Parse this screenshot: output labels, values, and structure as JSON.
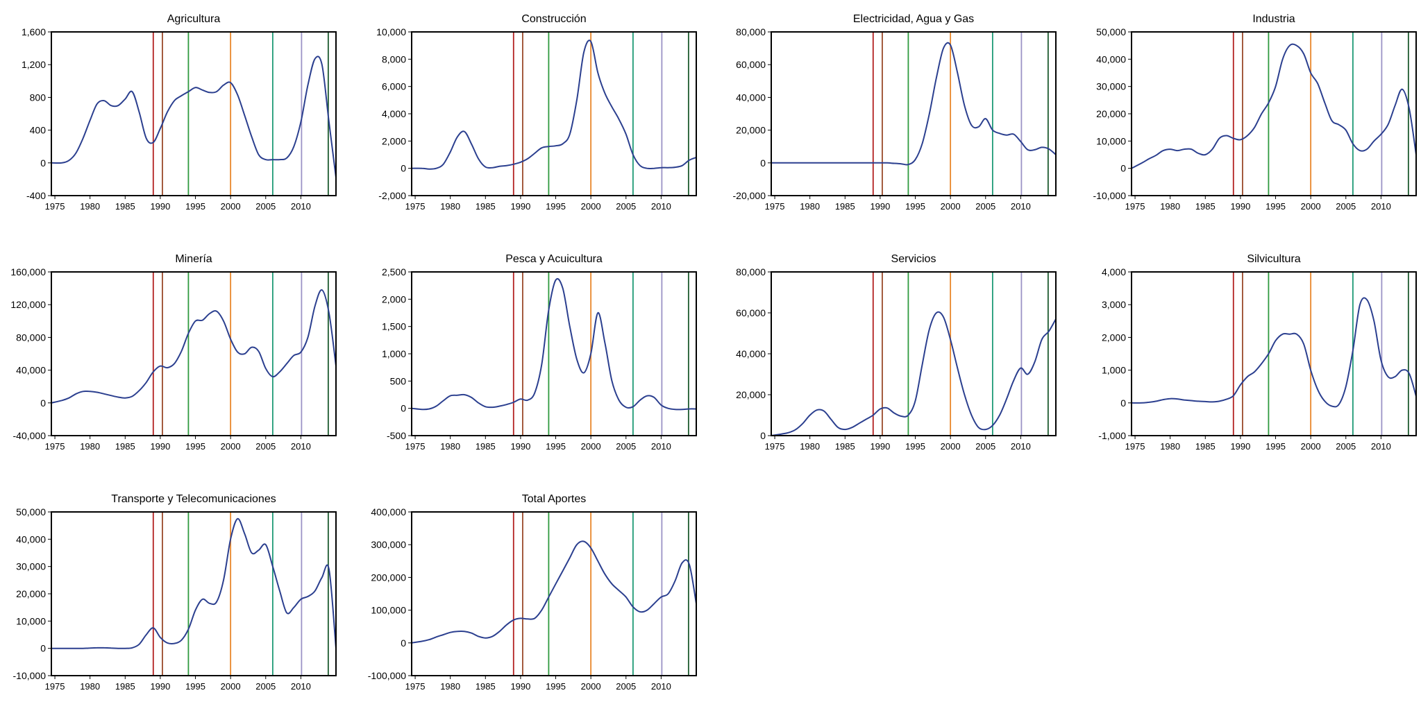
{
  "style": {
    "line_color": "#2b3f8f",
    "frame_color": "#000000",
    "event_lines": [
      {
        "year": 1989,
        "color": "#b32020"
      },
      {
        "year": 1990.3,
        "color": "#9a4a2a"
      },
      {
        "year": 1994,
        "color": "#2e9a3e"
      },
      {
        "year": 2000,
        "color": "#e8862a"
      },
      {
        "year": 2006,
        "color": "#1f9a76"
      },
      {
        "year": 2010.1,
        "color": "#9b93c6"
      },
      {
        "year": 2013.9,
        "color": "#1d5a2e"
      }
    ]
  },
  "x_axis": {
    "xlim": [
      1974.5,
      2015
    ],
    "tick_years": [
      1975,
      1980,
      1985,
      1990,
      1995,
      2000,
      2005,
      2010
    ],
    "tick_labels": [
      "1975",
      "1980",
      "1985",
      "1990",
      "1995",
      "2000",
      "2005",
      "2010"
    ]
  },
  "chart_data": [
    {
      "type": "line",
      "title": "Agricultura",
      "ylim": [
        -400,
        1600
      ],
      "y_ticks": [
        -400,
        0,
        400,
        800,
        1200,
        1600
      ],
      "y_tick_labels": [
        "-400",
        "0",
        "400",
        "800",
        "1,200",
        "1,600"
      ],
      "x": [
        1974.5,
        1976,
        1977,
        1978,
        1979,
        1980,
        1981,
        1982,
        1983,
        1984,
        1985,
        1986,
        1987,
        1988,
        1989,
        1990,
        1991,
        1992,
        1993,
        1994,
        1995,
        1996,
        1997,
        1998,
        1999,
        2000,
        2001,
        2002,
        2003,
        2004,
        2005,
        2006,
        2007,
        2008,
        2009,
        2010,
        2011,
        2012,
        2013,
        2014,
        2015
      ],
      "values": [
        0,
        0,
        30,
        120,
        300,
        520,
        720,
        760,
        700,
        700,
        780,
        870,
        620,
        300,
        250,
        420,
        620,
        760,
        820,
        870,
        920,
        890,
        860,
        870,
        950,
        980,
        830,
        580,
        320,
        100,
        40,
        40,
        40,
        60,
        200,
        500,
        950,
        1270,
        1200,
        500,
        -180
      ],
      "vlines": [
        1989,
        1990.3,
        1994,
        2000,
        2006,
        2010.1,
        2013.9
      ]
    },
    {
      "type": "line",
      "title": "Construcción",
      "ylim": [
        -2000,
        10000
      ],
      "y_ticks": [
        -2000,
        0,
        2000,
        4000,
        6000,
        8000,
        10000
      ],
      "y_tick_labels": [
        "-2,000",
        "0",
        "2,000",
        "4,000",
        "6,000",
        "8,000",
        "10,000"
      ],
      "x": [
        1974.5,
        1976,
        1977,
        1978,
        1979,
        1980,
        1981,
        1982,
        1983,
        1984,
        1985,
        1986,
        1987,
        1988,
        1989,
        1990,
        1991,
        1992,
        1993,
        1994,
        1995,
        1996,
        1997,
        1998,
        1999,
        2000,
        2001,
        2002,
        2003,
        2004,
        2005,
        2006,
        2007,
        2008,
        2009,
        2010,
        2011,
        2012,
        2013,
        2014,
        2015
      ],
      "values": [
        0,
        0,
        -50,
        0,
        300,
        1200,
        2300,
        2700,
        1800,
        700,
        100,
        50,
        150,
        200,
        300,
        450,
        700,
        1100,
        1500,
        1600,
        1650,
        1800,
        2500,
        5000,
        8500,
        9300,
        7000,
        5500,
        4500,
        3600,
        2500,
        1000,
        200,
        0,
        0,
        50,
        50,
        80,
        200,
        600,
        800
      ],
      "vlines": [
        1989,
        1990.3,
        1994,
        2000,
        2006,
        2010.1,
        2013.9
      ]
    },
    {
      "type": "line",
      "title": "Electricidad, Agua y Gas",
      "ylim": [
        -20000,
        80000
      ],
      "y_ticks": [
        -20000,
        0,
        20000,
        40000,
        60000,
        80000
      ],
      "y_tick_labels": [
        "-20,000",
        "0",
        "20,000",
        "40,000",
        "60,000",
        "80,000"
      ],
      "x": [
        1974.5,
        1980,
        1985,
        1989,
        1990,
        1991,
        1992,
        1993,
        1994,
        1995,
        1996,
        1997,
        1998,
        1999,
        2000,
        2001,
        2002,
        2003,
        2004,
        2005,
        2006,
        2007,
        2008,
        2009,
        2010,
        2011,
        2012,
        2013,
        2014,
        2015
      ],
      "values": [
        0,
        0,
        0,
        0,
        0,
        0,
        -300,
        -600,
        -1000,
        2000,
        12000,
        30000,
        52000,
        70000,
        72000,
        55000,
        35000,
        23000,
        22000,
        27000,
        20000,
        18000,
        17000,
        17500,
        13000,
        8000,
        8000,
        9500,
        8500,
        5000
      ],
      "vlines": [
        1989,
        1990.3,
        1994,
        2000,
        2006,
        2010.1,
        2013.9
      ]
    },
    {
      "type": "line",
      "title": "Industria",
      "ylim": [
        -10000,
        50000
      ],
      "y_ticks": [
        -10000,
        0,
        10000,
        20000,
        30000,
        40000,
        50000
      ],
      "y_tick_labels": [
        "-10,000",
        "0",
        "10,000",
        "20,000",
        "30,000",
        "40,000",
        "50,000"
      ],
      "x": [
        1974.5,
        1976,
        1977,
        1978,
        1979,
        1980,
        1981,
        1982,
        1983,
        1984,
        1985,
        1986,
        1987,
        1988,
        1989,
        1990,
        1991,
        1992,
        1993,
        1994,
        1995,
        1996,
        1997,
        1998,
        1999,
        2000,
        2001,
        2002,
        2003,
        2004,
        2005,
        2006,
        2007,
        2008,
        2009,
        2010,
        2011,
        2012,
        2013,
        2014,
        2015
      ],
      "values": [
        0,
        2000,
        3500,
        4800,
        6500,
        7000,
        6500,
        7000,
        7000,
        5500,
        5000,
        7000,
        11000,
        12000,
        11000,
        10500,
        12000,
        15000,
        20000,
        24000,
        30000,
        40000,
        45000,
        45000,
        42000,
        35000,
        31000,
        24000,
        17500,
        16000,
        14000,
        9000,
        6500,
        7000,
        10000,
        12500,
        16000,
        23000,
        29000,
        22000,
        5000
      ],
      "vlines": [
        1989,
        1990.3,
        1994,
        2000,
        2006,
        2010.1,
        2013.9
      ]
    },
    {
      "type": "line",
      "title": "Minería",
      "ylim": [
        -40000,
        160000
      ],
      "y_ticks": [
        -40000,
        0,
        40000,
        80000,
        120000,
        160000
      ],
      "y_tick_labels": [
        "-40,000",
        "0",
        "40,000",
        "80,000",
        "120,000",
        "160,000"
      ],
      "x": [
        1974.5,
        1976,
        1977,
        1978,
        1979,
        1980,
        1981,
        1982,
        1983,
        1984,
        1985,
        1986,
        1987,
        1988,
        1989,
        1990,
        1991,
        1992,
        1993,
        1994,
        1995,
        1996,
        1997,
        1998,
        1999,
        2000,
        2001,
        2002,
        2003,
        2004,
        2005,
        2006,
        2007,
        2008,
        2009,
        2010,
        2011,
        2012,
        2013,
        2014,
        2015
      ],
      "values": [
        0,
        3000,
        6000,
        11000,
        14000,
        14000,
        13000,
        11000,
        9000,
        7000,
        6000,
        8000,
        15000,
        25000,
        38000,
        45000,
        43000,
        48000,
        63000,
        85000,
        100000,
        101000,
        109000,
        112000,
        100000,
        78000,
        62000,
        60000,
        68000,
        63000,
        42000,
        32000,
        38000,
        48000,
        58000,
        62000,
        80000,
        118000,
        138000,
        110000,
        45000
      ],
      "vlines": [
        1989,
        1990.3,
        1994,
        2000,
        2006,
        2010.1,
        2013.9
      ]
    },
    {
      "type": "line",
      "title": "Pesca y Acuicultura",
      "ylim": [
        -500,
        2500
      ],
      "y_ticks": [
        -500,
        0,
        500,
        1000,
        1500,
        2000,
        2500
      ],
      "y_tick_labels": [
        "-500",
        "0",
        "500",
        "1,000",
        "1,500",
        "2,000",
        "2,500"
      ],
      "x": [
        1974.5,
        1976,
        1977,
        1978,
        1979,
        1980,
        1981,
        1982,
        1983,
        1984,
        1985,
        1986,
        1987,
        1988,
        1989,
        1990,
        1991,
        1992,
        1993,
        1994,
        1995,
        1996,
        1997,
        1998,
        1999,
        2000,
        2001,
        2002,
        2003,
        2004,
        2005,
        2006,
        2007,
        2008,
        2009,
        2010,
        2011,
        2012,
        2013,
        2014,
        2015
      ],
      "values": [
        0,
        -20,
        -10,
        40,
        140,
        230,
        240,
        250,
        200,
        100,
        30,
        20,
        40,
        70,
        110,
        170,
        150,
        280,
        800,
        1800,
        2350,
        2200,
        1500,
        900,
        650,
        1000,
        1750,
        1200,
        500,
        150,
        20,
        30,
        150,
        230,
        200,
        60,
        0,
        -20,
        -20,
        -10,
        -10
      ],
      "vlines": [
        1989,
        1990.3,
        1994,
        2000,
        2006,
        2010.1,
        2013.9
      ]
    },
    {
      "type": "line",
      "title": "Servicios",
      "ylim": [
        0,
        80000
      ],
      "y_ticks": [
        0,
        20000,
        40000,
        60000,
        80000
      ],
      "y_tick_labels": [
        "0",
        "20,000",
        "40,000",
        "60,000",
        "80,000"
      ],
      "x": [
        1974.5,
        1976,
        1977,
        1978,
        1979,
        1980,
        1981,
        1982,
        1983,
        1984,
        1985,
        1986,
        1987,
        1988,
        1989,
        1990,
        1991,
        1992,
        1993,
        1994,
        1995,
        1996,
        1997,
        1998,
        1999,
        2000,
        2001,
        2002,
        2003,
        2004,
        2005,
        2006,
        2007,
        2008,
        2009,
        2010,
        2011,
        2012,
        2013,
        2014,
        2015
      ],
      "values": [
        0,
        800,
        1500,
        3000,
        6000,
        10000,
        12500,
        12000,
        8000,
        4000,
        3000,
        4000,
        6000,
        8000,
        10000,
        13000,
        13500,
        11000,
        9500,
        10000,
        17000,
        35000,
        52000,
        60000,
        58000,
        47000,
        33000,
        20000,
        10000,
        4000,
        3000,
        5000,
        10000,
        18000,
        27000,
        33000,
        30000,
        36000,
        47000,
        51000,
        57000
      ],
      "vlines": [
        1989,
        1990.3,
        1994,
        2000,
        2006,
        2010.1,
        2013.9
      ]
    },
    {
      "type": "line",
      "title": "Silvicultura",
      "ylim": [
        -1000,
        4000
      ],
      "y_ticks": [
        -1000,
        0,
        1000,
        2000,
        3000,
        4000
      ],
      "y_tick_labels": [
        "-1,000",
        "0",
        "1,000",
        "2,000",
        "3,000",
        "4,000"
      ],
      "x": [
        1974.5,
        1976,
        1977,
        1978,
        1979,
        1980,
        1981,
        1982,
        1983,
        1984,
        1985,
        1986,
        1987,
        1988,
        1989,
        1990,
        1991,
        1992,
        1993,
        1994,
        1995,
        1996,
        1997,
        1998,
        1999,
        2000,
        2001,
        2002,
        2003,
        2004,
        2005,
        2006,
        2007,
        2008,
        2009,
        2010,
        2011,
        2012,
        2013,
        2014,
        2015
      ],
      "values": [
        0,
        0,
        20,
        50,
        100,
        130,
        120,
        90,
        70,
        50,
        40,
        30,
        50,
        110,
        220,
        550,
        800,
        950,
        1200,
        1500,
        1900,
        2100,
        2100,
        2100,
        1800,
        1000,
        400,
        50,
        -100,
        -50,
        500,
        1600,
        3000,
        3150,
        2500,
        1300,
        800,
        800,
        1000,
        900,
        200
      ],
      "vlines": [
        1989,
        1990.3,
        1994,
        2000,
        2006,
        2010.1,
        2013.9
      ]
    },
    {
      "type": "line",
      "title": "Transporte y Telecomunicaciones",
      "ylim": [
        -10000,
        50000
      ],
      "y_ticks": [
        -10000,
        0,
        10000,
        20000,
        30000,
        40000,
        50000
      ],
      "y_tick_labels": [
        "-10,000",
        "0",
        "10,000",
        "20,000",
        "30,000",
        "40,000",
        "50,000"
      ],
      "x": [
        1974.5,
        1976,
        1977,
        1978,
        1979,
        1980,
        1981,
        1982,
        1983,
        1984,
        1985,
        1986,
        1987,
        1988,
        1989,
        1990,
        1991,
        1992,
        1993,
        1994,
        1995,
        1996,
        1997,
        1998,
        1999,
        2000,
        2001,
        2002,
        2003,
        2004,
        2005,
        2006,
        2007,
        2008,
        2009,
        2010,
        2011,
        2012,
        2013,
        2014,
        2015
      ],
      "values": [
        0,
        0,
        0,
        0,
        0,
        100,
        200,
        200,
        100,
        0,
        0,
        200,
        1500,
        5000,
        7500,
        4000,
        2000,
        1800,
        3000,
        7000,
        14000,
        18000,
        16500,
        17000,
        25000,
        40000,
        47500,
        42000,
        35000,
        36000,
        38000,
        30000,
        21000,
        13000,
        15000,
        18000,
        19000,
        21000,
        26000,
        29000,
        0
      ],
      "vlines": [
        1989,
        1990.3,
        1994,
        2000,
        2006,
        2010.1,
        2013.9
      ]
    },
    {
      "type": "line",
      "title": "Total Aportes",
      "ylim": [
        -100000,
        400000
      ],
      "y_ticks": [
        -100000,
        0,
        100000,
        200000,
        300000,
        400000
      ],
      "y_tick_labels": [
        "-100,000",
        "0",
        "100,000",
        "200,000",
        "300,000",
        "400,000"
      ],
      "x": [
        1974.5,
        1976,
        1977,
        1978,
        1979,
        1980,
        1981,
        1982,
        1983,
        1984,
        1985,
        1986,
        1987,
        1988,
        1989,
        1990,
        1991,
        1992,
        1993,
        1994,
        1995,
        1996,
        1997,
        1998,
        1999,
        2000,
        2001,
        2002,
        2003,
        2004,
        2005,
        2006,
        2007,
        2008,
        2009,
        2010,
        2011,
        2012,
        2013,
        2014,
        2015
      ],
      "values": [
        0,
        5000,
        10000,
        18000,
        25000,
        32000,
        35000,
        35000,
        30000,
        20000,
        15000,
        20000,
        35000,
        55000,
        70000,
        75000,
        73000,
        75000,
        100000,
        140000,
        180000,
        220000,
        260000,
        300000,
        310000,
        290000,
        250000,
        210000,
        180000,
        160000,
        140000,
        110000,
        95000,
        100000,
        120000,
        140000,
        150000,
        190000,
        245000,
        240000,
        120000
      ],
      "vlines": [
        1989,
        1990.3,
        1994,
        2000,
        2006,
        2010.1,
        2013.9
      ]
    }
  ]
}
